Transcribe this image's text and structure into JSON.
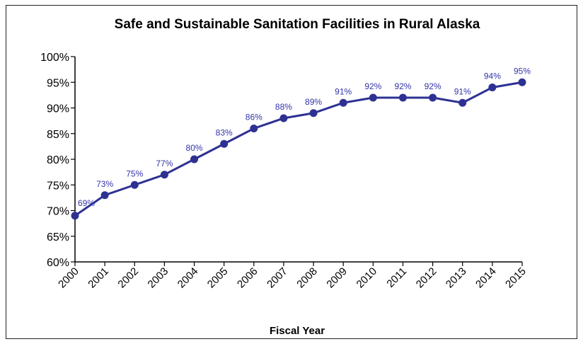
{
  "chart_data": {
    "type": "line",
    "title": "Safe and Sustainable Sanitation Facilities in Rural Alaska",
    "xlabel": "Fiscal Year",
    "ylabel": "",
    "ylim": [
      60,
      100
    ],
    "ytick_step": 5,
    "ytick_suffix": "%",
    "grid": false,
    "line_color": "#2e3192",
    "label_color": "#3333aa",
    "x": [
      "2000",
      "2001",
      "2002",
      "2003",
      "2004",
      "2005",
      "2006",
      "2007",
      "2008",
      "2009",
      "2010",
      "2011",
      "2012",
      "2013",
      "2014",
      "2015"
    ],
    "series": [
      {
        "values": [
          69,
          73,
          75,
          77,
          80,
          83,
          86,
          88,
          89,
          91,
          92,
          92,
          92,
          91,
          94,
          95
        ],
        "data_labels": [
          "69%",
          "73%",
          "75%",
          "77%",
          "80%",
          "83%",
          "86%",
          "88%",
          "89%",
          "91%",
          "92%",
          "92%",
          "92%",
          "91%",
          "94%",
          "95%"
        ]
      }
    ]
  }
}
